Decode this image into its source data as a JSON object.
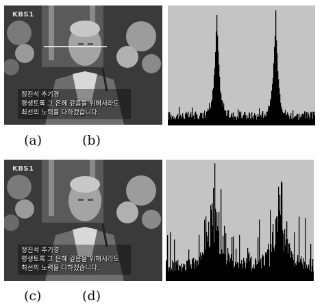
{
  "panels": {
    "top_photo": {
      "logo": "KBS1",
      "caption_name": "정진석 추기경",
      "caption_line1": "평생토록 그 은혜 갚음을 위해서라도",
      "caption_line2": "최선의 노력을 다하겠습니다."
    },
    "bottom_photo": {
      "logo": "KBS1",
      "caption_name": "정진석 추기경",
      "caption_line1": "평생토록 그 은혜 갚음을 위해서라도",
      "caption_line2": "최선의 노력을 다하겠습니다."
    }
  },
  "labels": {
    "a": "(a)",
    "b": "(b)",
    "c": "(c)",
    "d": "(d)"
  },
  "colors": {
    "plot_background": "#c4c4c4",
    "bars": "#000000"
  },
  "chart_data": [
    {
      "type": "bar",
      "panel": "b",
      "title": "",
      "xlabel": "",
      "ylabel": "",
      "peaks": [
        0.33,
        0.73
      ],
      "peak_height": 0.86,
      "baseline": 0.09,
      "noisy": false
    },
    {
      "type": "bar",
      "panel": "d",
      "title": "",
      "xlabel": "",
      "ylabel": "",
      "peaks": [
        0.33,
        0.77
      ],
      "peak_height": 0.72,
      "baseline": 0.14,
      "noisy": true
    }
  ]
}
